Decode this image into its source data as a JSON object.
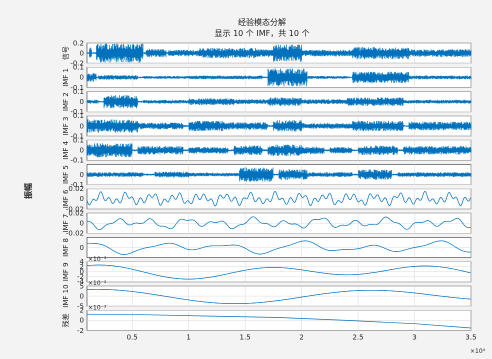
{
  "figure": {
    "title": "经验模态分解",
    "subtitle": "显示 10 个 IMF，共 10 个",
    "shared_ylabel": "振幅",
    "x_axis_exponent": "×10⁴"
  },
  "chart_data": {
    "type": "line",
    "title": "经验模态分解",
    "subtitle": "显示 10 个 IMF，共 10 个",
    "ylabel": "振幅",
    "x": {
      "range": [
        0.1,
        3.5
      ],
      "ticks": [
        0.5,
        1,
        1.5,
        2,
        2.5,
        3,
        3.5
      ],
      "tick_labels": [
        "0.5",
        "1",
        "1.5",
        "2",
        "2.5",
        "3",
        "3.5"
      ],
      "exponent": "×10⁴"
    },
    "grid": true,
    "color": "#0072bd",
    "panels": [
      {
        "name": "信号",
        "ylim": [
          -0.2,
          0.2
        ],
        "yticks": [
          -0.2,
          0,
          0.2
        ],
        "ytick_labels": [
          "-0.2",
          "0",
          "0.2"
        ],
        "exponent": "",
        "style": "noise",
        "segments": [
          [
            0.12,
            0.14,
            0.6
          ],
          [
            0.18,
            0.6,
            1.0
          ],
          [
            0.62,
            0.8,
            0.45
          ],
          [
            0.82,
            1.1,
            0.35
          ],
          [
            1.1,
            1.6,
            0.55
          ],
          [
            1.6,
            1.75,
            0.4
          ],
          [
            1.75,
            2.0,
            0.9
          ],
          [
            2.0,
            2.45,
            0.35
          ],
          [
            2.45,
            2.95,
            0.65
          ],
          [
            2.95,
            3.5,
            0.4
          ]
        ]
      },
      {
        "name": "IMF 1",
        "ylim": [
          -0.1,
          0.1
        ],
        "yticks": [
          -0.1,
          0,
          0.1
        ],
        "ytick_labels": [
          "-0.1",
          "0",
          "0.1"
        ],
        "exponent": "",
        "style": "noise",
        "segments": [
          [
            0.1,
            0.18,
            0.45
          ],
          [
            0.2,
            0.55,
            0.25
          ],
          [
            0.6,
            1.0,
            0.15
          ],
          [
            1.0,
            1.65,
            0.2
          ],
          [
            1.7,
            2.05,
            0.95
          ],
          [
            2.05,
            2.4,
            0.15
          ],
          [
            2.45,
            2.95,
            0.6
          ],
          [
            2.95,
            3.5,
            0.2
          ]
        ]
      },
      {
        "name": "IMF 2",
        "ylim": [
          -0.1,
          0.1
        ],
        "yticks": [
          -0.1,
          0,
          0.1
        ],
        "ytick_labels": [
          "-0.1",
          "0",
          "0.1"
        ],
        "exponent": "",
        "style": "noise",
        "segments": [
          [
            0.1,
            0.2,
            0.2
          ],
          [
            0.25,
            0.55,
            0.7
          ],
          [
            0.6,
            1.0,
            0.2
          ],
          [
            1.0,
            1.4,
            0.35
          ],
          [
            1.4,
            1.7,
            0.25
          ],
          [
            1.7,
            2.0,
            0.45
          ],
          [
            2.0,
            2.4,
            0.25
          ],
          [
            2.4,
            2.9,
            0.45
          ],
          [
            2.9,
            3.5,
            0.2
          ]
        ]
      },
      {
        "name": "IMF 3",
        "ylim": [
          -0.1,
          0.1
        ],
        "yticks": [
          -0.1,
          0,
          0.1
        ],
        "ytick_labels": [
          "-0.1",
          "0",
          "0.1"
        ],
        "exponent": "",
        "style": "noise",
        "segments": [
          [
            0.1,
            0.55,
            0.7
          ],
          [
            0.55,
            0.95,
            0.35
          ],
          [
            1.0,
            1.3,
            0.55
          ],
          [
            1.3,
            1.7,
            0.4
          ],
          [
            1.75,
            2.0,
            0.6
          ],
          [
            2.0,
            2.45,
            0.3
          ],
          [
            2.45,
            2.9,
            0.55
          ],
          [
            2.95,
            3.5,
            0.45
          ]
        ]
      },
      {
        "name": "IMF 4",
        "ylim": [
          -0.1,
          0.1
        ],
        "yticks": [
          -0.1,
          0,
          0.1
        ],
        "ytick_labels": [
          "-0.1",
          "0",
          "0.1"
        ],
        "exponent": "",
        "style": "noise",
        "segments": [
          [
            0.1,
            0.5,
            0.75
          ],
          [
            0.55,
            0.95,
            0.45
          ],
          [
            1.0,
            1.35,
            0.35
          ],
          [
            1.4,
            1.65,
            0.5
          ],
          [
            1.7,
            2.0,
            0.6
          ],
          [
            2.0,
            2.2,
            0.4
          ],
          [
            2.25,
            2.45,
            0.35
          ],
          [
            2.5,
            2.85,
            0.5
          ],
          [
            2.9,
            3.5,
            0.45
          ]
        ]
      },
      {
        "name": "IMF 5",
        "ylim": [
          -0.1,
          0.1
        ],
        "yticks": [
          -0.1,
          0
        ],
        "ytick_labels": [
          "-0.1",
          "0"
        ],
        "exponent": "",
        "style": "noise",
        "segments": [
          [
            0.1,
            0.6,
            0.25
          ],
          [
            0.7,
            1.0,
            0.3
          ],
          [
            1.0,
            1.45,
            0.2
          ],
          [
            1.45,
            1.75,
            0.75
          ],
          [
            1.8,
            2.05,
            0.55
          ],
          [
            2.05,
            2.45,
            0.25
          ],
          [
            2.5,
            2.8,
            0.55
          ],
          [
            2.85,
            3.5,
            0.25
          ]
        ]
      },
      {
        "name": "IMF 6",
        "ylim": [
          -0.02,
          0.02
        ],
        "yticks": [
          -0.02,
          0,
          0.02
        ],
        "ytick_labels": [
          "-0.02",
          "0",
          "0.02"
        ],
        "exponent": "",
        "style": "wave",
        "waves": [
          [
            0.35,
            0.22,
            1.3
          ],
          [
            0.15,
            0.12,
            3.1
          ],
          [
            0.3,
            0.07,
            0.4
          ]
        ]
      },
      {
        "name": "IMF 7",
        "ylim": [
          -0.02,
          0.02
        ],
        "yticks": [
          -0.02,
          0,
          0.02
        ],
        "ytick_labels": [
          "-0.02",
          "0",
          "0.02"
        ],
        "exponent": "",
        "style": "wave",
        "waves": [
          [
            0.35,
            0.3,
            0.2
          ],
          [
            0.2,
            0.55,
            2.0
          ],
          [
            0.15,
            0.13,
            1.1
          ]
        ]
      },
      {
        "name": "IMF 8",
        "ylim": [
          -0.01,
          0.01
        ],
        "yticks": [
          0
        ],
        "ytick_labels": [
          "0"
        ],
        "exponent": "",
        "style": "wave",
        "waves": [
          [
            0.4,
            0.62,
            0.3
          ],
          [
            0.25,
            1.05,
            1.7
          ],
          [
            0.12,
            0.3,
            2.4
          ]
        ]
      },
      {
        "name": "IMF 9",
        "ylim": [
          -4,
          4
        ],
        "yticks": [
          -4,
          -2,
          0,
          2,
          4
        ],
        "ytick_labels": [
          "-4",
          "-2",
          "0",
          "2",
          "4"
        ],
        "exponent": "×10⁻³",
        "style": "wave",
        "waves": [
          [
            0.55,
            1.45,
            0.5
          ],
          [
            0.25,
            2.7,
            1.9
          ]
        ]
      },
      {
        "name": "IMF 10",
        "ylim": [
          -5,
          5
        ],
        "yticks": [
          -5,
          0,
          5
        ],
        "ytick_labels": [
          "-5",
          "0",
          "5"
        ],
        "exponent": "×10⁻³",
        "style": "wave",
        "waves": [
          [
            0.6,
            2.3,
            0.9
          ],
          [
            0.2,
            3.9,
            2.2
          ]
        ]
      },
      {
        "name": "残差",
        "ylim": [
          -2,
          2
        ],
        "yticks": [
          -2,
          0,
          2
        ],
        "ytick_labels": [
          "-2",
          "0",
          "2"
        ],
        "exponent": "×10⁻³",
        "style": "trend",
        "trend": [
          [
            0.1,
            0.65
          ],
          [
            0.6,
            0.6
          ],
          [
            1.2,
            0.45
          ],
          [
            1.8,
            0.3
          ],
          [
            2.4,
            0.0
          ],
          [
            3.0,
            -0.35
          ],
          [
            3.5,
            -0.8
          ]
        ]
      }
    ]
  }
}
